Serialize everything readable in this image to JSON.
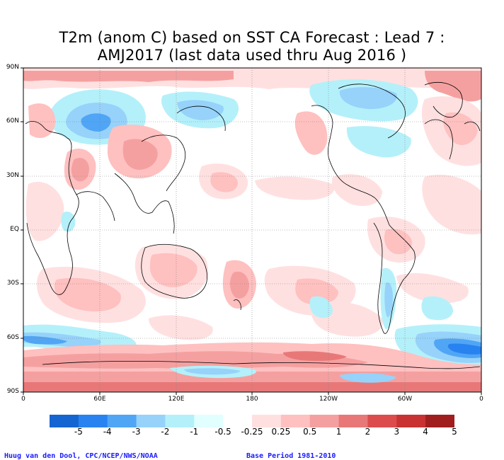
{
  "title": {
    "line1": "T2m (anom C) based on SST CA Forecast : Lead 7 :",
    "line2": "AMJ2017 (last data used thru Aug 2016 )"
  },
  "map": {
    "lat_ticks": [
      "90N",
      "60N",
      "30N",
      "EQ",
      "30S",
      "60S",
      "90S"
    ],
    "lon_ticks": [
      "0",
      "60E",
      "120E",
      "180",
      "120W",
      "60W",
      "0"
    ]
  },
  "legend": {
    "labels": [
      "-5",
      "-4",
      "-3",
      "-2",
      "-1",
      "-0.5",
      "-0.25",
      "0.25",
      "0.5",
      "1",
      "2",
      "3",
      "4",
      "5"
    ],
    "colors": [
      "#1464d2",
      "#2882f0",
      "#50a5f5",
      "#96d2fa",
      "#b4f0fa",
      "#e1ffff",
      "#ffffff",
      "#ffe0e0",
      "#ffc0c0",
      "#f5a0a0",
      "#e87878",
      "#dc4c4c",
      "#c83232",
      "#a01e1e"
    ]
  },
  "footer": {
    "left": "Huug van den Dool, CPC/NCEP/NWS/NOAA",
    "right": "Base Period 1981-2010"
  }
}
